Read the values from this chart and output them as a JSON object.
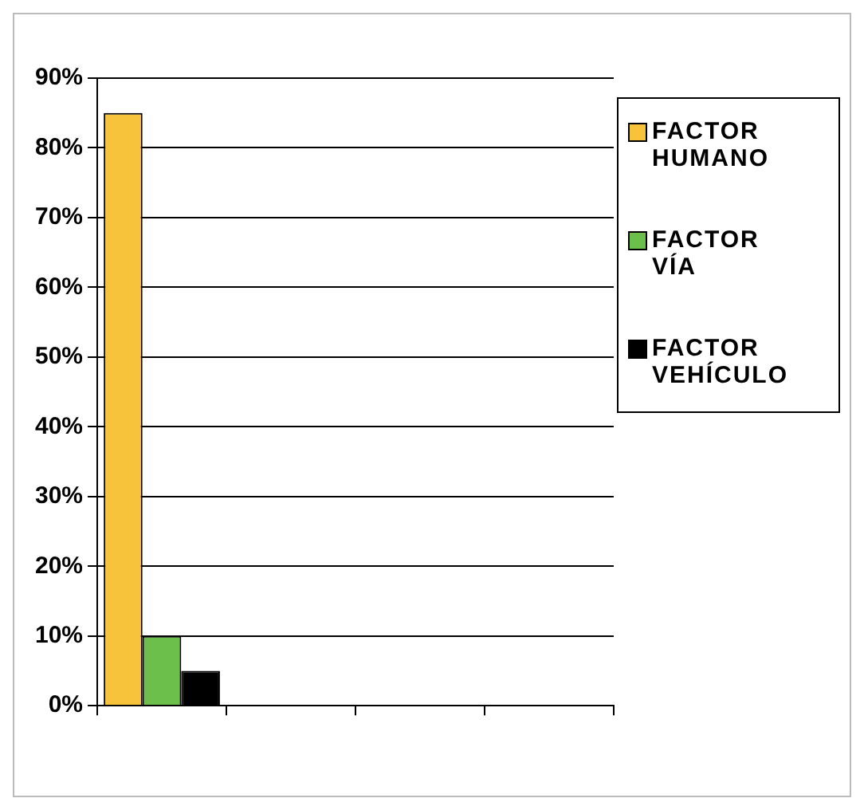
{
  "chart_data": {
    "type": "bar",
    "categories": [
      null,
      null,
      null,
      null
    ],
    "series": [
      {
        "name": "FACTOR HUMANO",
        "color": "#f7c33a",
        "values": [
          85,
          null,
          null,
          null
        ]
      },
      {
        "name": "FACTOR VÍA",
        "color": "#6cbf4a",
        "values": [
          10,
          null,
          null,
          null
        ]
      },
      {
        "name": "FACTOR VEHÍCULO",
        "color": "#000000",
        "values": [
          5,
          null,
          null,
          null
        ]
      }
    ],
    "ylim": [
      0,
      90
    ],
    "yticks": [
      {
        "value": 0,
        "label": "0%"
      },
      {
        "value": 10,
        "label": "10%"
      },
      {
        "value": 20,
        "label": "20%"
      },
      {
        "value": 30,
        "label": "30%"
      },
      {
        "value": 40,
        "label": "40%"
      },
      {
        "value": 50,
        "label": "50%"
      },
      {
        "value": 60,
        "label": "60%"
      },
      {
        "value": 70,
        "label": "70%"
      },
      {
        "value": 80,
        "label": "80%"
      },
      {
        "value": 90,
        "label": "90%"
      }
    ],
    "grid": "y",
    "legend": "right"
  }
}
